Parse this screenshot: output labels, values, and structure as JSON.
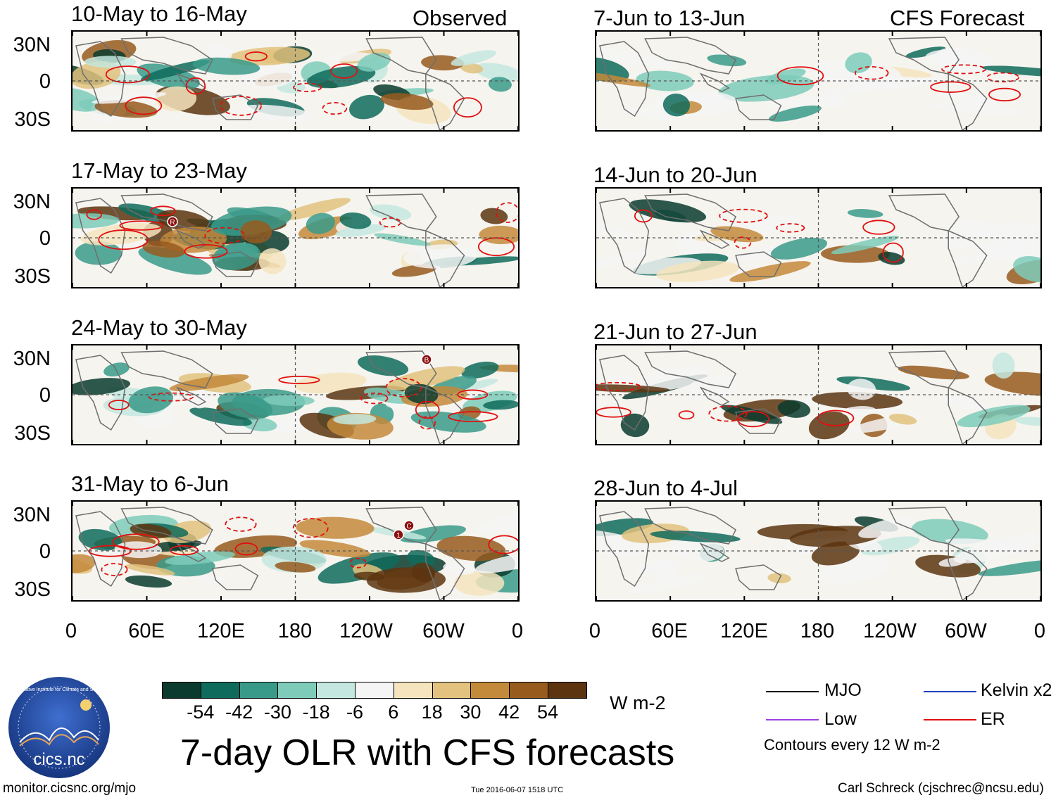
{
  "observed_label": "Observed",
  "forecast_label": "CFS Forecast",
  "panels_left": [
    {
      "title": "10-May to 16-May"
    },
    {
      "title": "17-May to 23-May"
    },
    {
      "title": "24-May to 30-May"
    },
    {
      "title": "31-May to 6-Jun"
    }
  ],
  "panels_right": [
    {
      "title": "7-Jun to 13-Jun"
    },
    {
      "title": "14-Jun to 20-Jun"
    },
    {
      "title": "21-Jun to 27-Jun"
    },
    {
      "title": "28-Jun to 4-Jul"
    }
  ],
  "lat_labels": [
    "30N",
    "0",
    "30S"
  ],
  "lon_labels": [
    "0",
    "60E",
    "120E",
    "180",
    "120W",
    "60W",
    "0"
  ],
  "colorbar": {
    "colors": [
      "#0b3b2e",
      "#0f6b5c",
      "#3a9a8a",
      "#7ecbba",
      "#c4e8df",
      "#f5f5f5",
      "#f5e4bd",
      "#e2c27e",
      "#c48a3b",
      "#975b1e",
      "#5c3510"
    ],
    "labels": [
      "-54",
      "-42",
      "-30",
      "-18",
      "-6",
      "6",
      "18",
      "30",
      "42",
      "54"
    ],
    "units": "W m-2"
  },
  "main_title": "7-day OLR with CFS forecasts",
  "legend": {
    "items": [
      {
        "label": "MJO",
        "color": "#000000"
      },
      {
        "label": "Kelvin x2",
        "color": "#1f3fbf"
      },
      {
        "label": "Low",
        "color": "#a040e0"
      },
      {
        "label": "ER",
        "color": "#e01010"
      }
    ],
    "contour_note": "Contours every 12 W m-2"
  },
  "logo_text": "cics.nc",
  "logo_ring_text": "Cooperative Institute for Climate and Satellites",
  "footer": {
    "url": "monitor.cicsnc.org/mjo",
    "timestamp": "Tue 2016-06-07 1518 UTC",
    "credit": "Carl Schreck (cjschrec@ncsu.edu)"
  },
  "storm_markers": [
    "R",
    "B",
    "C",
    "1"
  ]
}
